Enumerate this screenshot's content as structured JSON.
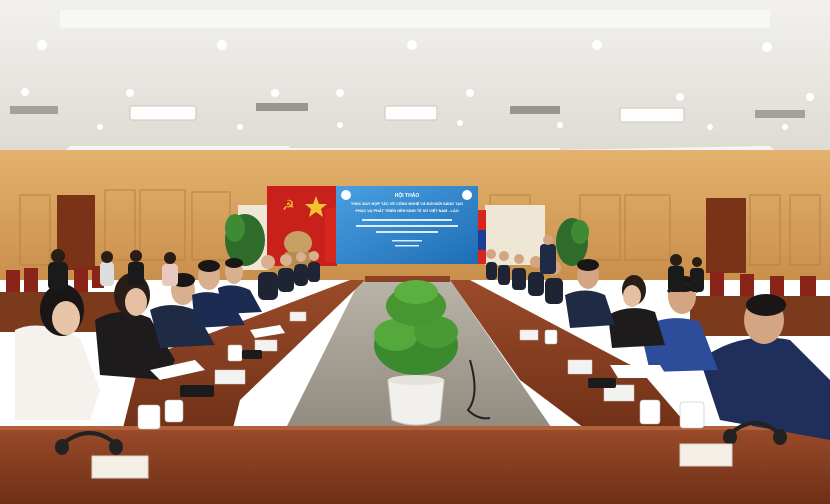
{
  "banner": {
    "line1": "HỘI THẢO",
    "line2": "THÚC ĐẨY HỢP TÁC VỀ CÔNG NGHỆ VÀ ĐỔI MỚI SÁNG TẠO",
    "line3": "PHỤC VỤ PHÁT TRIỂN NỀN KINH TẾ SỐ VIỆT NAM - LÀO"
  },
  "colors": {
    "ceiling": "#e9e6e0",
    "wall_wood": "#d9a35e",
    "red_drape": "#c8201a",
    "banner_blue": "#2a7fc8",
    "table": "#8a3f22"
  }
}
